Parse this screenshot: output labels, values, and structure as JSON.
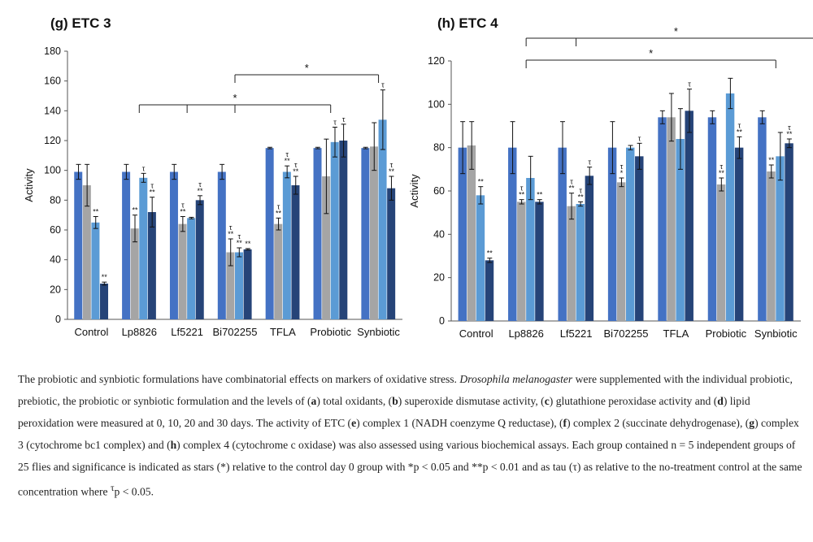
{
  "chart_data": [
    {
      "type": "bar",
      "title": "(g) ETC 3",
      "ylabel": "Activity",
      "ylim": [
        0,
        180
      ],
      "yticks": [
        0,
        20,
        40,
        60,
        80,
        100,
        120,
        140,
        160,
        180
      ],
      "categories": [
        "Control",
        "Lp8826",
        "Lf5221",
        "Bi702255",
        "TFLA",
        "Probiotic",
        "Synbiotic"
      ],
      "series_colors": [
        "#4472c4",
        "#a5a5a5",
        "#5b9bd5",
        "#264478"
      ],
      "series": [
        {
          "values": [
            99,
            99,
            99,
            99,
            115,
            115,
            115
          ],
          "errors": [
            5,
            5,
            5,
            5,
            0.5,
            0.5,
            0.5
          ]
        },
        {
          "values": [
            90,
            61,
            64,
            45,
            64,
            96,
            116
          ],
          "errors": [
            14,
            9,
            5,
            9,
            4,
            25,
            16
          ]
        },
        {
          "values": [
            65,
            95,
            68,
            45,
            99,
            119,
            134
          ],
          "errors": [
            4,
            3,
            0.5,
            3,
            4,
            10,
            20
          ]
        },
        {
          "values": [
            24,
            72,
            80,
            47,
            90,
            120,
            88
          ],
          "errors": [
            1,
            10,
            3,
            0.5,
            6,
            11,
            8
          ]
        }
      ],
      "annotations": [
        [
          "",
          "",
          "**",
          "**"
        ],
        [
          "",
          "**",
          "τ",
          "τ **"
        ],
        [
          "",
          "τ **",
          "",
          "τ **"
        ],
        [
          "",
          "τ **",
          "τ **",
          "**"
        ],
        [
          "",
          "τ **",
          "τ **",
          "τ **"
        ],
        [
          "",
          "",
          "τ",
          "τ"
        ],
        [
          "",
          "",
          "τ",
          "τ **"
        ]
      ],
      "significance": [
        {
          "label": "*",
          "from": 1,
          "to": 5,
          "ticks": [
            1,
            2,
            3,
            5
          ]
        },
        {
          "label": "*",
          "from": 3,
          "to": 6,
          "ticks": [
            3,
            6
          ]
        }
      ]
    },
    {
      "type": "bar",
      "title": "(h) ETC 4",
      "ylabel": "Activity",
      "ylim": [
        0,
        120
      ],
      "yticks": [
        0,
        20,
        40,
        60,
        80,
        100,
        120
      ],
      "categories": [
        "Control",
        "Lp8826",
        "Lf5221",
        "Bi702255",
        "TFLA",
        "Probiotic",
        "Synbiotic"
      ],
      "series_colors": [
        "#4472c4",
        "#a5a5a5",
        "#5b9bd5",
        "#264478"
      ],
      "series": [
        {
          "values": [
            80,
            80,
            80,
            80,
            94,
            94,
            94
          ],
          "errors": [
            12,
            12,
            12,
            12,
            3,
            3,
            3
          ]
        },
        {
          "values": [
            81,
            55,
            53,
            64,
            94,
            63,
            69
          ],
          "errors": [
            11,
            1,
            6,
            2,
            11,
            3,
            3
          ]
        },
        {
          "values": [
            58,
            66,
            54,
            80,
            84,
            105,
            76
          ],
          "errors": [
            4,
            10,
            1,
            1,
            14,
            7,
            11
          ]
        },
        {
          "values": [
            28,
            55,
            67,
            76,
            97,
            80,
            82
          ],
          "errors": [
            1,
            1,
            4,
            6,
            10,
            5,
            2
          ]
        }
      ],
      "annotations": [
        [
          "",
          "",
          "**",
          "**"
        ],
        [
          "",
          "τ **",
          "",
          "**"
        ],
        [
          "",
          "τ **",
          "τ **",
          "τ"
        ],
        [
          "",
          "τ *",
          "",
          "τ"
        ],
        [
          "",
          "",
          "",
          "τ"
        ],
        [
          "",
          "τ **",
          "",
          "τ **"
        ],
        [
          "",
          "**",
          "",
          "τ **"
        ]
      ],
      "significance": [
        {
          "label": "*",
          "from": 1,
          "to": 7,
          "ticks": [
            1,
            2,
            7
          ]
        },
        {
          "label": "*",
          "from": 1,
          "to": 6,
          "ticks": [
            1,
            6
          ]
        }
      ]
    }
  ],
  "caption": {
    "parts": [
      {
        "t": "The probiotic and synbiotic formulations have combinatorial effects on markers of oxidative stress. "
      },
      {
        "t": "Drosophila melanogaster",
        "s": "i"
      },
      {
        "t": " were supplemented with the individual probiotic, prebiotic, the probiotic or synbiotic formulation and the levels of ("
      },
      {
        "t": "a",
        "s": "b"
      },
      {
        "t": ") total oxidants, ("
      },
      {
        "t": "b",
        "s": "b"
      },
      {
        "t": ") superoxide dismutase activity, ("
      },
      {
        "t": "c",
        "s": "b"
      },
      {
        "t": ") glutathione peroxidase activity and ("
      },
      {
        "t": "d",
        "s": "b"
      },
      {
        "t": ") lipid peroxidation were measured at 0, 10, 20 and 30 days. The activity of ETC ("
      },
      {
        "t": "e",
        "s": "b"
      },
      {
        "t": ") complex 1 (NADH coenzyme Q reductase), ("
      },
      {
        "t": "f",
        "s": "b"
      },
      {
        "t": ") complex 2 (succinate dehydrogenase), ("
      },
      {
        "t": "g",
        "s": "b"
      },
      {
        "t": ") complex 3 (cytochrome bc1 complex) and ("
      },
      {
        "t": "h",
        "s": "b"
      },
      {
        "t": ") complex 4 (cytochrome c oxidase) was also assessed using various biochemical assays. Each group contained n = 5 independent groups of 25 flies and significance is indicated as stars (*) relative to the control day 0 group with *p < 0.05 and **p < 0.01 and as tau (τ) as relative to the no-treatment control at the same concentration where "
      },
      {
        "t": "τ",
        "s": "sup"
      },
      {
        "t": "p < 0.05."
      }
    ]
  }
}
